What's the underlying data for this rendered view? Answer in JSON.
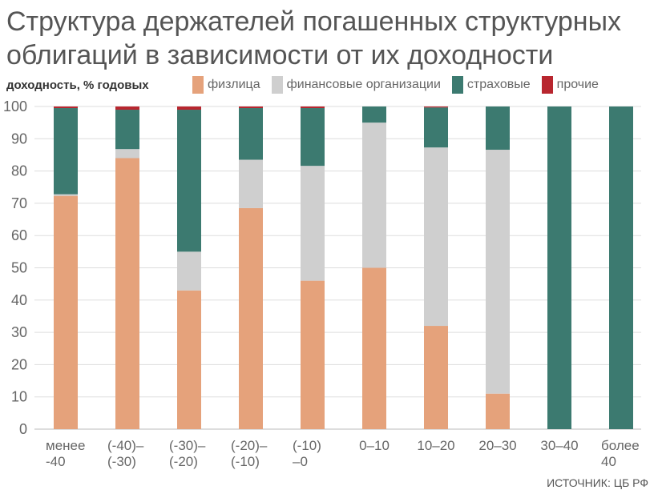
{
  "title_line1": "Структура держателей погашенных структурных",
  "title_line2": "облигаций в зависимости от их доходности",
  "source": "ИСТОЧНИК: ЦБ РФ",
  "chart_data": {
    "type": "bar",
    "stacked": true,
    "ylabel": "доходность, % годовых",
    "ylim": [
      0,
      100
    ],
    "yticks": [
      0,
      10,
      20,
      30,
      40,
      50,
      60,
      70,
      80,
      90,
      100
    ],
    "grid": true,
    "legend_position": "top",
    "categories": [
      [
        "менее",
        "-40"
      ],
      [
        "(-40)–",
        "(-30)"
      ],
      [
        "(-30)–",
        "(-20)"
      ],
      [
        "(-20)–",
        "(-10)"
      ],
      [
        "(-10)",
        "–0"
      ],
      [
        "0–10"
      ],
      [
        "10–20"
      ],
      [
        "20–30"
      ],
      [
        "30–40"
      ],
      [
        "более",
        "40"
      ]
    ],
    "series": [
      {
        "name": "физлица",
        "color": "#e5a27b",
        "values": [
          72.3,
          84,
          43,
          68.5,
          46,
          50,
          32,
          11,
          0,
          0
        ]
      },
      {
        "name": "финансовые организации",
        "color": "#cfcfcf",
        "values": [
          0.5,
          2.8,
          12,
          15,
          35.6,
          45,
          55.3,
          75.6,
          0,
          0
        ]
      },
      {
        "name": "страховые",
        "color": "#3c7a70",
        "values": [
          26.7,
          12.2,
          44,
          16,
          17.9,
          5,
          12.4,
          13.4,
          100,
          100
        ]
      },
      {
        "name": "прочие",
        "color": "#b8262f",
        "values": [
          0.5,
          1,
          1,
          0.5,
          0.5,
          0,
          0.3,
          0,
          0,
          0
        ]
      }
    ]
  }
}
